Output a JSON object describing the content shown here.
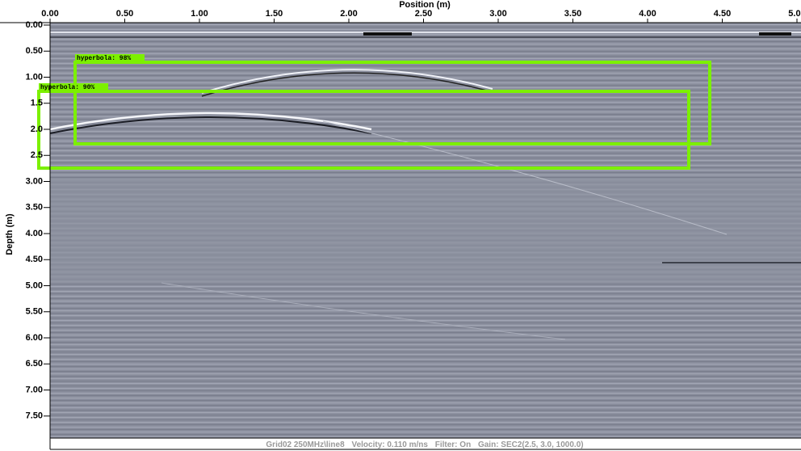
{
  "x_axis": {
    "title": "Position (m)",
    "ticks": [
      {
        "value": 0,
        "label": "0.00"
      },
      {
        "value": 0.5,
        "label": "0.50"
      },
      {
        "value": 1,
        "label": "1.00"
      },
      {
        "value": 1.5,
        "label": "1.50"
      },
      {
        "value": 2,
        "label": "2.00"
      },
      {
        "value": 2.5,
        "label": "2.50"
      },
      {
        "value": 3,
        "label": "3.00"
      },
      {
        "value": 3.5,
        "label": "3.50"
      },
      {
        "value": 4,
        "label": "4.00"
      },
      {
        "value": 4.5,
        "label": "4.50"
      },
      {
        "value": 5,
        "label": "5.00"
      }
    ]
  },
  "y_axis": {
    "title": "Depth (m)",
    "ticks": [
      {
        "value": 0,
        "label": "0.00"
      },
      {
        "value": 0.5,
        "label": "0.50"
      },
      {
        "value": 1,
        "label": "1.00"
      },
      {
        "value": 1.5,
        "label": "1.5"
      },
      {
        "value": 2,
        "label": "2.0"
      },
      {
        "value": 2.5,
        "label": "2.5"
      },
      {
        "value": 3,
        "label": "3.00"
      },
      {
        "value": 3.5,
        "label": "3.50"
      },
      {
        "value": 4,
        "label": "4.00"
      },
      {
        "value": 4.5,
        "label": "4.50"
      },
      {
        "value": 5,
        "label": "5.00"
      },
      {
        "value": 5.5,
        "label": "5.50"
      },
      {
        "value": 6,
        "label": "6.00"
      },
      {
        "value": 6.5,
        "label": "6.50"
      },
      {
        "value": 7,
        "label": "7.00"
      },
      {
        "value": 7.5,
        "label": "7.50"
      }
    ]
  },
  "detections": [
    {
      "label": "hyperbola: 98%"
    },
    {
      "label": "hyperbola: 90%"
    }
  ],
  "footer": {
    "grid": "Grid02 250MHz\\line8",
    "velocity": "Velocity: 0.110 m/ns",
    "filter": "Filter: On",
    "gain": "Gain: SEC2(2.5, 3.0, 1000.0)"
  }
}
